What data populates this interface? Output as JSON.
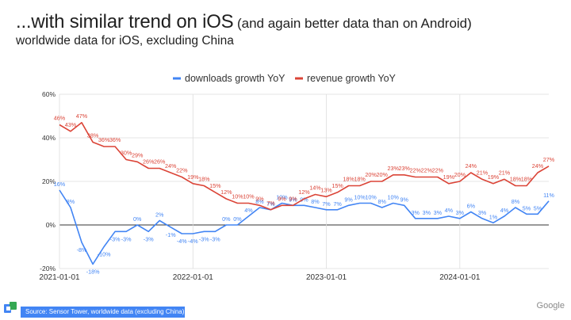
{
  "header": {
    "title": "...with similar trend on iOS",
    "title_paren": "(and again better data than on Android)",
    "subtitle": "worldwide data for  iOS, excluding China"
  },
  "footer": {
    "source": "Source: Sensor Tower, worldwide data (excluding China)",
    "brand": "Google"
  },
  "chart_data": {
    "type": "line",
    "title": "",
    "xlabel": "",
    "ylabel": "",
    "ylim": [
      -20,
      60
    ],
    "y_ticks": [
      "-20%",
      "0%",
      "20%",
      "40%",
      "60%"
    ],
    "x_ticks": [
      "2021-01-01",
      "2022-01-01",
      "2023-01-01",
      "2024-01-01"
    ],
    "grid": true,
    "legend_position": "top",
    "series": [
      {
        "name": "downloads growth YoY",
        "color": "#4285f4",
        "labels": [
          "16%",
          "8%",
          "-8%",
          "-18%",
          "-10%",
          "-3%",
          "-3%",
          "0%",
          "-3%",
          "2%",
          "-1%",
          "-4%",
          "-4%",
          "-3%",
          "-3%",
          "0%",
          "0%",
          "4%",
          "8%",
          "7%",
          "10%",
          "9%",
          "9%",
          "8%",
          "7%",
          "7%",
          "9%",
          "10%",
          "10%",
          "8%",
          "10%",
          "9%",
          "3%",
          "3%",
          "3%",
          "4%",
          "3%",
          "6%",
          "3%",
          "1%",
          "4%",
          "8%",
          "5%",
          "5%",
          "11%"
        ],
        "values": [
          16,
          8,
          -8,
          -18,
          -10,
          -3,
          -3,
          0,
          -3,
          2,
          -1,
          -4,
          -4,
          -3,
          -3,
          0,
          0,
          4,
          8,
          7,
          10,
          9,
          9,
          8,
          7,
          7,
          9,
          10,
          10,
          8,
          10,
          9,
          3,
          3,
          3,
          4,
          3,
          6,
          3,
          1,
          4,
          8,
          5,
          5,
          11
        ]
      },
      {
        "name": "revenue growth YoY",
        "color": "#db4437",
        "labels": [
          "46%",
          "43%",
          "47%",
          "38%",
          "36%",
          "36%",
          "30%",
          "29%",
          "26%",
          "26%",
          "24%",
          "22%",
          "19%",
          "18%",
          "15%",
          "12%",
          "10%",
          "10%",
          "9%",
          "7%",
          "9%",
          "9%",
          "12%",
          "14%",
          "13%",
          "15%",
          "18%",
          "18%",
          "20%",
          "20%",
          "23%",
          "23%",
          "22%",
          "22%",
          "22%",
          "19%",
          "20%",
          "24%",
          "21%",
          "19%",
          "21%",
          "18%",
          "18%",
          "24%",
          "27%"
        ],
        "values": [
          46,
          43,
          47,
          38,
          36,
          36,
          30,
          29,
          26,
          26,
          24,
          22,
          19,
          18,
          15,
          12,
          10,
          10,
          9,
          7,
          9,
          9,
          12,
          14,
          13,
          15,
          18,
          18,
          20,
          20,
          23,
          23,
          22,
          22,
          22,
          19,
          20,
          24,
          21,
          19,
          21,
          18,
          18,
          24,
          27
        ]
      }
    ]
  }
}
